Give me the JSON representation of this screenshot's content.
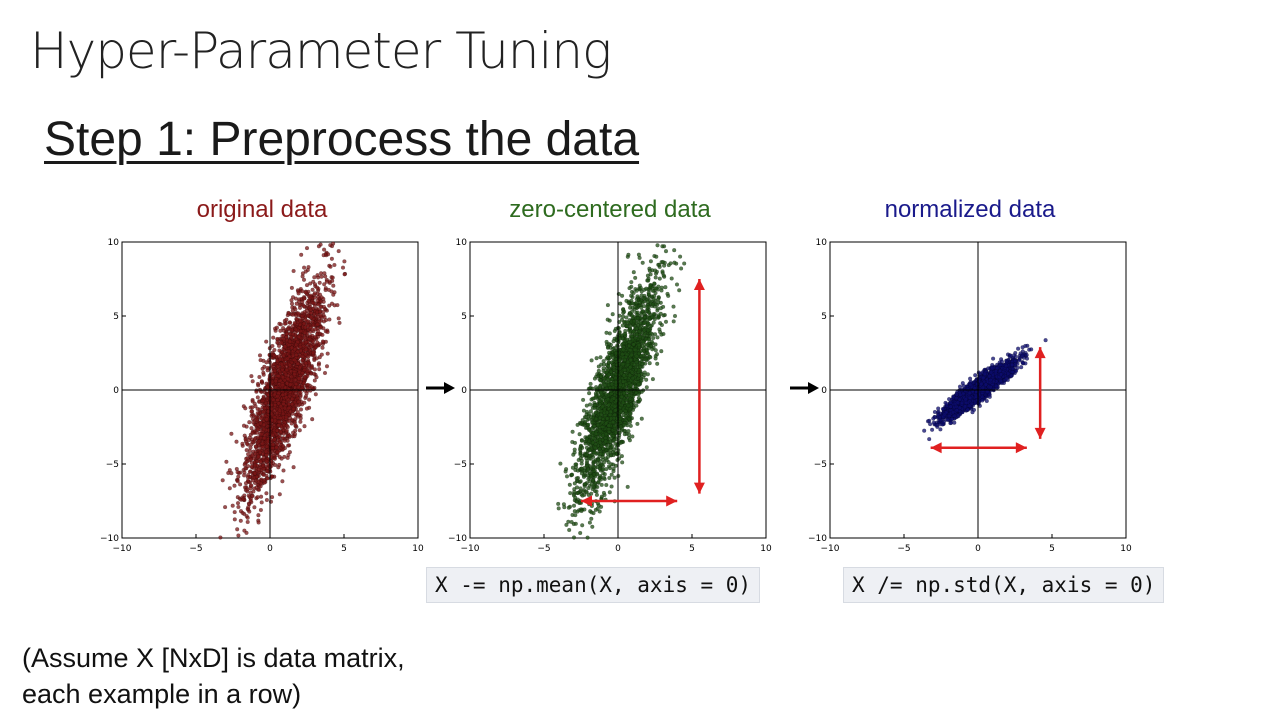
{
  "slide": {
    "title": "Hyper-Parameter Tuning",
    "step_heading": "Step 1: Preprocess the data",
    "note_line1": "(Assume X [NxD] is data matrix,",
    "note_line2": "each example in a row)"
  },
  "code": {
    "mean": "X -= np.mean(X, axis = 0)",
    "std": "X /= np.std(X, axis = 0)"
  },
  "colors": {
    "original": "#8b1a1a",
    "zero_centered": "#2e6b1f",
    "normalized": "#1a1a8b",
    "arrow": "#e02020"
  },
  "chart_data": [
    {
      "type": "scatter",
      "title": "original data",
      "xlim": [
        -10,
        10
      ],
      "ylim": [
        -10,
        10
      ],
      "xticks": [
        -10,
        -5,
        0,
        5,
        10
      ],
      "yticks": [
        -10,
        -5,
        0,
        5,
        10
      ],
      "xtick_labels": [
        "−10",
        "−5",
        "0",
        "5",
        "10"
      ],
      "ytick_labels": [
        "−10",
        "−5",
        "0",
        "5",
        "10"
      ],
      "color": "#7a1515",
      "center": [
        1.0,
        0.2
      ],
      "std_major": 3.8,
      "std_minor": 0.75,
      "angle_deg": 72,
      "n_points": 2500,
      "range_arrows": []
    },
    {
      "type": "scatter",
      "title": "zero-centered data",
      "xlim": [
        -10,
        10
      ],
      "ylim": [
        -10,
        10
      ],
      "xticks": [
        -10,
        -5,
        0,
        5,
        10
      ],
      "yticks": [
        -10,
        -5,
        0,
        5,
        10
      ],
      "xtick_labels": [
        "−10",
        "−5",
        "0",
        "5",
        "10"
      ],
      "ytick_labels": [
        "−10",
        "−5",
        "0",
        "5",
        "10"
      ],
      "color": "#1f4d14",
      "center": [
        0,
        0
      ],
      "std_major": 3.8,
      "std_minor": 0.75,
      "angle_deg": 72,
      "n_points": 2500,
      "range_arrows": [
        {
          "x1": -2.5,
          "y1": -7.5,
          "x2": 4.0,
          "y2": -7.5
        },
        {
          "x1": 5.5,
          "y1": 7.5,
          "x2": 5.5,
          "y2": -7.0
        }
      ]
    },
    {
      "type": "scatter",
      "title": "normalized data",
      "xlim": [
        -10,
        10
      ],
      "ylim": [
        -10,
        10
      ],
      "xticks": [
        -10,
        -5,
        0,
        5,
        10
      ],
      "yticks": [
        -10,
        -5,
        0,
        5,
        10
      ],
      "xtick_labels": [
        "−10",
        "−5",
        "0",
        "5",
        "10"
      ],
      "ytick_labels": [
        "−10",
        "−5",
        "0",
        "5",
        "10"
      ],
      "color": "#0c0c6e",
      "center": [
        0,
        0
      ],
      "std_major": 1.45,
      "std_minor": 0.3,
      "angle_deg": 38,
      "n_points": 2500,
      "range_arrows": [
        {
          "x1": -3.2,
          "y1": -3.9,
          "x2": 3.3,
          "y2": -3.9
        },
        {
          "x1": 4.2,
          "y1": 2.9,
          "x2": 4.2,
          "y2": -3.3
        }
      ]
    }
  ]
}
